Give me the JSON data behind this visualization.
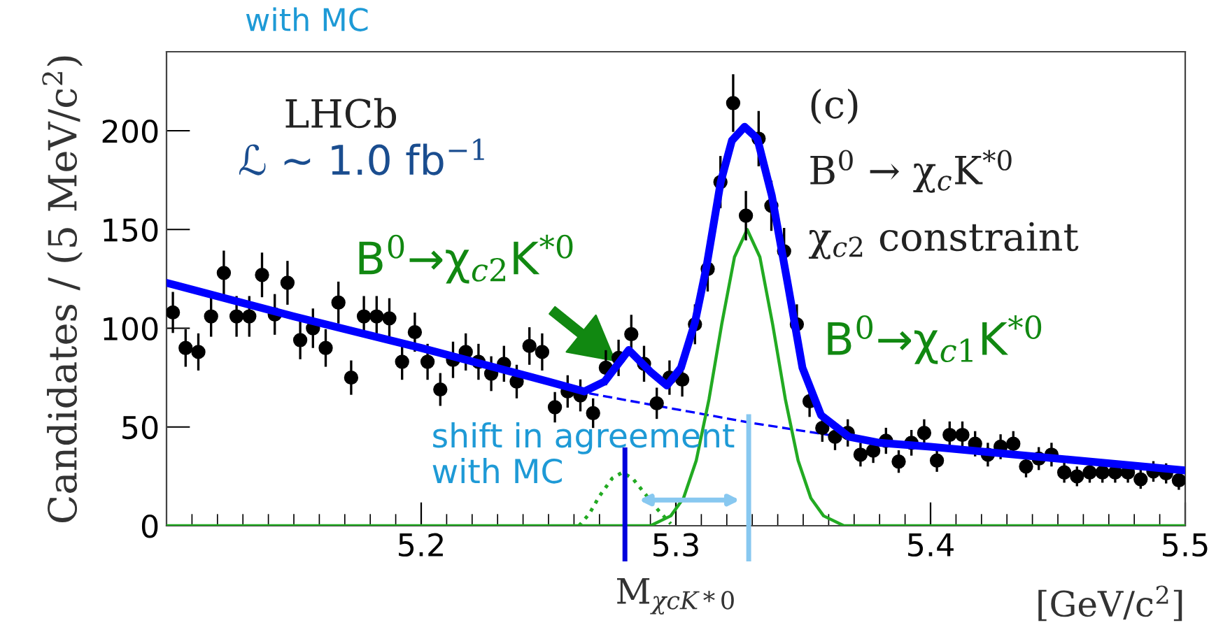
{
  "chart_data": {
    "type": "scatter",
    "xlabel": "M$_{χcK*0}$",
    "ylabel": "Candidates / (5 MeV/c$^{2}$)",
    "xlim": [
      5.1,
      5.5
    ],
    "xticks": [
      5.2,
      5.3,
      5.4,
      5.5
    ],
    "ylim": [
      0,
      240
    ],
    "yticks": [
      0,
      50,
      100,
      150,
      200
    ],
    "grid": false,
    "legend": false,
    "series": [
      {
        "color": "#000000",
        "marker": "circle",
        "x": [
          5.1025,
          5.1075,
          5.1125,
          5.1175,
          5.1225,
          5.1275,
          5.1325,
          5.1375,
          5.1425,
          5.1475,
          5.1525,
          5.1575,
          5.1625,
          5.1675,
          5.1725,
          5.1775,
          5.1825,
          5.1875,
          5.1925,
          5.1975,
          5.2025,
          5.2075,
          5.2125,
          5.2175,
          5.2225,
          5.2275,
          5.2325,
          5.2375,
          5.2425,
          5.2475,
          5.2525,
          5.2575,
          5.2625,
          5.2675,
          5.2725,
          5.2775,
          5.2825,
          5.2875,
          5.2925,
          5.2975,
          5.3025,
          5.3075,
          5.3125,
          5.3175,
          5.3225,
          5.3275,
          5.3325,
          5.3375,
          5.3425,
          5.3475,
          5.3525,
          5.3575,
          5.3625,
          5.3675,
          5.3725,
          5.3775,
          5.3825,
          5.3875,
          5.3925,
          5.3975,
          5.4025,
          5.4075,
          5.4125,
          5.4175,
          5.4225,
          5.4275,
          5.4325,
          5.4375,
          5.4425,
          5.4475,
          5.4525,
          5.4575,
          5.4625,
          5.4675,
          5.4725,
          5.4775,
          5.4825,
          5.4875,
          5.4925,
          5.4975
        ],
        "values": [
          108,
          90,
          88,
          106,
          128,
          106,
          106,
          127,
          107,
          123,
          94,
          100,
          90,
          113,
          75,
          106,
          106,
          105,
          83,
          98,
          83,
          69,
          84,
          88,
          83,
          77,
          82,
          73,
          91,
          88,
          60,
          68,
          66,
          57,
          80,
          85,
          97,
          82,
          62,
          75,
          74,
          102,
          130,
          174,
          214,
          157,
          196,
          162,
          139,
          102,
          63,
          49.5,
          45,
          47,
          36,
          38,
          43,
          32.5,
          42,
          47,
          33,
          46,
          46,
          41.5,
          36,
          40,
          41.5,
          30,
          34,
          36,
          27,
          25,
          27,
          27,
          27,
          27,
          23.5,
          27.5,
          26.5,
          23
        ],
        "errors": [
          10.4,
          9.5,
          9.4,
          10.3,
          11.3,
          10.3,
          10.3,
          11.3,
          10.3,
          11.1,
          9.7,
          10,
          9.5,
          10.6,
          8.7,
          10.3,
          10.3,
          10.2,
          9.1,
          9.9,
          9.1,
          8.3,
          9.2,
          9.4,
          9.1,
          8.8,
          9.1,
          8.5,
          9.5,
          9.4,
          7.7,
          8.2,
          8.1,
          7.5,
          8.9,
          9.2,
          9.8,
          9.1,
          7.9,
          8.7,
          8.6,
          10.1,
          11.4,
          13.2,
          14.6,
          12.5,
          14,
          12.7,
          11.8,
          10.1,
          7.9,
          7,
          6.7,
          6.9,
          6,
          6.2,
          6.6,
          5.7,
          6.5,
          6.9,
          5.7,
          6.8,
          6.8,
          6.4,
          6,
          6.3,
          6.4,
          5.5,
          5.8,
          6,
          5.2,
          5,
          5.2,
          5.2,
          5.2,
          5.2,
          4.8,
          5.2,
          5.1,
          4.8
        ]
      },
      {
        "type": "line",
        "color": "#0000ff",
        "line_style": "solid",
        "x": [
          5.1,
          5.15,
          5.2,
          5.25,
          5.264,
          5.272,
          5.2815,
          5.29,
          5.2965,
          5.302,
          5.3075,
          5.312,
          5.3176,
          5.322,
          5.327,
          5.332,
          5.3377,
          5.344,
          5.3497,
          5.357,
          5.368,
          5.38,
          5.4,
          5.45,
          5.5
        ],
        "values": [
          123,
          106,
          90,
          73,
          68,
          73,
          89,
          78,
          71,
          80,
          103,
          131,
          174,
          195,
          202,
          196,
          167,
          122,
          80,
          56,
          45,
          42,
          40,
          34,
          28
        ]
      },
      {
        "type": "line",
        "color": "#0000ff",
        "line_style": "dashed",
        "x": [
          5.266,
          5.3,
          5.33,
          5.36
        ],
        "values": [
          67,
          59,
          52,
          46
        ]
      },
      {
        "type": "line",
        "color": "#22aa22",
        "line_style": "solid",
        "x": [
          5.1,
          5.29,
          5.298,
          5.303,
          5.308,
          5.313,
          5.318,
          5.323,
          5.328,
          5.333,
          5.338,
          5.343,
          5.348,
          5.353,
          5.358,
          5.366,
          5.5
        ],
        "values": [
          0,
          0,
          5,
          14,
          33,
          64,
          102,
          136,
          150,
          136,
          102,
          64,
          33,
          14,
          5,
          0,
          0
        ]
      },
      {
        "type": "line",
        "color": "#22aa22",
        "line_style": "dotted",
        "x": [
          5.262,
          5.266,
          5.27,
          5.275,
          5.279,
          5.283,
          5.288,
          5.293,
          5.298
        ],
        "values": [
          0,
          6,
          15,
          24,
          27,
          24,
          16,
          8,
          1
        ]
      }
    ],
    "ref_lines": [
      {
        "axis": "x",
        "value": 5.28,
        "color": "#0000dd"
      },
      {
        "axis": "x",
        "value": 5.3286,
        "color": "#88c8f0"
      }
    ],
    "annotations": [
      "LHCb",
      "ℒ ~ 1.0 fb$^{−1}$",
      "(c)",
      "B$^{0}$ → χ$_{c}$K$^{*0}$",
      "χ$_{c2}$ constraint",
      {
        "text": "B$^{0}$→χ$_{c2}$K$^{*0}$",
        "x": 5.2795,
        "y": 80
      },
      "B$^{0}$→χ$_{c1}$K$^{*0}$",
      "shift in agreement\nwith MC",
      "[GeV/c$^{2}$]",
      "with MC"
    ]
  }
}
